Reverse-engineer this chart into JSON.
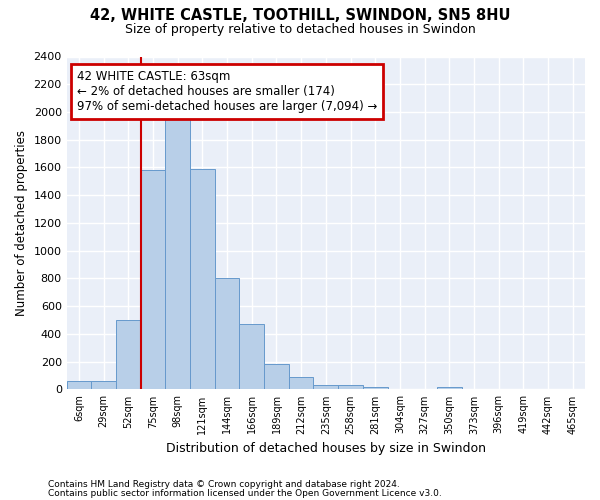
{
  "title1": "42, WHITE CASTLE, TOOTHILL, SWINDON, SN5 8HU",
  "title2": "Size of property relative to detached houses in Swindon",
  "xlabel": "Distribution of detached houses by size in Swindon",
  "ylabel": "Number of detached properties",
  "footer1": "Contains HM Land Registry data © Crown copyright and database right 2024.",
  "footer2": "Contains public sector information licensed under the Open Government Licence v3.0.",
  "categories": [
    "6sqm",
    "29sqm",
    "52sqm",
    "75sqm",
    "98sqm",
    "121sqm",
    "144sqm",
    "166sqm",
    "189sqm",
    "212sqm",
    "235sqm",
    "258sqm",
    "281sqm",
    "304sqm",
    "327sqm",
    "350sqm",
    "373sqm",
    "396sqm",
    "419sqm",
    "442sqm",
    "465sqm"
  ],
  "values": [
    60,
    60,
    500,
    1580,
    1950,
    1590,
    800,
    470,
    185,
    90,
    35,
    30,
    20,
    0,
    0,
    20,
    0,
    0,
    0,
    0,
    0
  ],
  "bar_color": "#b8cfe8",
  "bar_edge_color": "#6699cc",
  "background_color": "#eaeff8",
  "grid_color": "#ffffff",
  "annotation_text": "42 WHITE CASTLE: 63sqm\n← 2% of detached houses are smaller (174)\n97% of semi-detached houses are larger (7,094) →",
  "annotation_box_color": "#ffffff",
  "annotation_border_color": "#cc0000",
  "vline_color": "#cc0000",
  "vline_x": 2.5,
  "ylim": [
    0,
    2400
  ],
  "yticks": [
    0,
    200,
    400,
    600,
    800,
    1000,
    1200,
    1400,
    1600,
    1800,
    2000,
    2200,
    2400
  ],
  "fig_bg": "#ffffff"
}
